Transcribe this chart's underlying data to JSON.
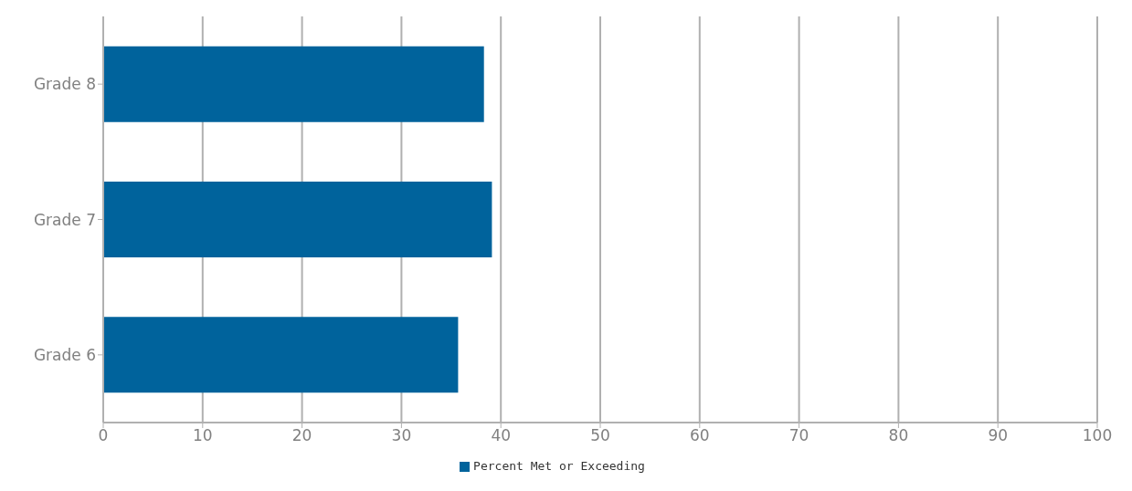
{
  "chart_data": {
    "type": "bar",
    "orientation": "horizontal",
    "categories": [
      "Grade 8",
      "Grade 7",
      "Grade 6"
    ],
    "series": [
      {
        "name": "Percent Met or Exceeding",
        "color": "#00639c",
        "values": [
          38.3,
          39.1,
          35.7
        ]
      }
    ],
    "xlim": [
      0,
      100
    ],
    "xticks": [
      0,
      10,
      20,
      30,
      40,
      50,
      60,
      70,
      80,
      90,
      100
    ],
    "grid": "x",
    "legend": "bottom"
  }
}
